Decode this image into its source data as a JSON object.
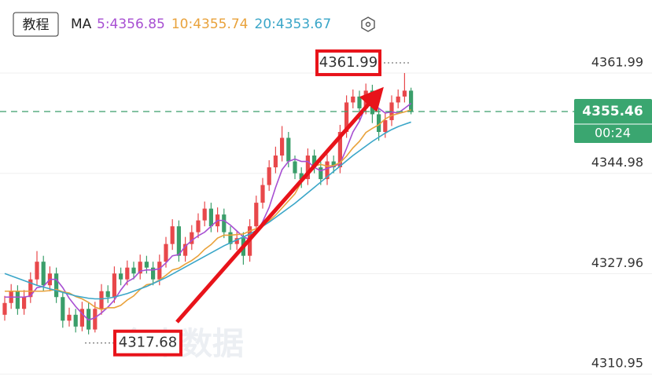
{
  "header": {
    "button": "教程",
    "indicator": "MA",
    "watermark": "金十数据"
  },
  "chart_data": {
    "type": "candlestick",
    "up_color": "#e8484b",
    "down_color": "#3a9e6a",
    "open": [
      4321,
      4323,
      4325,
      4322,
      4324,
      4327,
      4330,
      4326,
      4328,
      4324,
      4320,
      4321,
      4319,
      4322,
      4318.5,
      4322,
      4325,
      4324,
      4328,
      4327,
      4329,
      4328,
      4330,
      4329,
      4327,
      4330,
      4333,
      4336,
      4331,
      4333,
      4335,
      4337,
      4339,
      4336,
      4338,
      4335,
      4333,
      4334,
      4331,
      4336,
      4340,
      4343,
      4346,
      4348,
      4351,
      4347,
      4345,
      4344,
      4348,
      4346,
      4344,
      4347,
      4346,
      4352,
      4357,
      4358,
      4356,
      4359,
      4355,
      4352,
      4354,
      4357,
      4358,
      4359
    ],
    "high": [
      4324.2,
      4326.2,
      4326,
      4325.2,
      4328.2,
      4331.8,
      4331,
      4329.2,
      4329,
      4325,
      4322.2,
      4322,
      4323.2,
      4323,
      4323.2,
      4326.2,
      4326,
      4329.2,
      4329,
      4330.2,
      4330,
      4331.2,
      4331,
      4330,
      4331.2,
      4334.2,
      4337.2,
      4337,
      4334.2,
      4336.2,
      4338.2,
      4340.2,
      4340,
      4339.2,
      4339,
      4336,
      4335.2,
      4335,
      4337.2,
      4341.2,
      4344.2,
      4347.2,
      4349.5,
      4353,
      4352,
      4348,
      4346,
      4349.2,
      4349,
      4347,
      4348.2,
      4348,
      4353.2,
      4358.2,
      4359.2,
      4359,
      4360.2,
      4360,
      4356,
      4355.2,
      4358.2,
      4359.2,
      4361.99,
      4359.5
    ],
    "low": [
      4320,
      4322,
      4321,
      4321,
      4323,
      4326,
      4325,
      4325,
      4323,
      4318.8,
      4319,
      4318,
      4318.2,
      4317.68,
      4318,
      4321,
      4323,
      4323,
      4326,
      4326,
      4327,
      4327,
      4328,
      4326,
      4326,
      4329,
      4332,
      4330,
      4330,
      4332,
      4334,
      4336,
      4335,
      4335,
      4334,
      4332,
      4332,
      4329.5,
      4330,
      4335,
      4339,
      4342,
      4345,
      4347,
      4346,
      4344,
      4342.5,
      4343,
      4345,
      4343,
      4343,
      4345,
      4345,
      4351,
      4356,
      4354,
      4355,
      4353.5,
      4350.5,
      4351,
      4353,
      4356,
      4357,
      4355
    ],
    "close": [
      4323,
      4325,
      4322,
      4324,
      4327,
      4330,
      4326,
      4328,
      4324,
      4320,
      4321,
      4319,
      4322,
      4318.5,
      4322,
      4325,
      4324,
      4328,
      4327,
      4329,
      4328,
      4330,
      4329,
      4327,
      4330,
      4333,
      4336,
      4331,
      4333,
      4335,
      4337,
      4339,
      4336,
      4338,
      4335,
      4333,
      4334,
      4331,
      4336,
      4340,
      4343,
      4346,
      4348,
      4351,
      4347,
      4345,
      4344,
      4348,
      4346,
      4344,
      4347,
      4346,
      4352,
      4357,
      4358,
      4356,
      4359,
      4355,
      4352,
      4354,
      4357,
      4358,
      4359,
      4355.46
    ],
    "series": [
      {
        "name": "5:4356.85",
        "color": "#a74fd2",
        "values": [
          4324,
          4324,
          4324,
          4324,
          4324.2,
          4325.6,
          4325.8,
          4327,
          4327,
          4325.6,
          4323.8,
          4322.4,
          4321.2,
          4320.1,
          4320.5,
          4321.3,
          4322.3,
          4323.5,
          4325.2,
          4326.6,
          4327.2,
          4328.4,
          4328.6,
          4328.6,
          4328.8,
          4329.8,
          4331,
          4331.2,
          4332.6,
          4333.6,
          4334.4,
          4335,
          4336,
          4337,
          4337,
          4336.2,
          4335.2,
          4334.2,
          4333.8,
          4334.8,
          4336.8,
          4339.2,
          4342.6,
          4345.6,
          4347,
          4347.4,
          4347,
          4347,
          4346,
          4345.4,
          4345.8,
          4346.2,
          4346.6,
          4349.2,
          4352,
          4353.8,
          4356.4,
          4357,
          4356,
          4355.2,
          4355.4,
          4355.2,
          4356,
          4356.85
        ]
      },
      {
        "name": "10:4355.74",
        "color": "#e9a23b",
        "values": [
          4325,
          4325,
          4325,
          4325,
          4325,
          4325,
          4325,
          4325.1,
          4325.3,
          4324.9,
          4324.7,
          4324.1,
          4323.7,
          4323.1,
          4322.3,
          4321.9,
          4322.2,
          4322.2,
          4322.6,
          4323.5,
          4324.2,
          4325.3,
          4326.1,
          4326.3,
          4326.9,
          4327.7,
          4328.6,
          4328.9,
          4329.6,
          4330.2,
          4331,
          4332.1,
          4332.9,
          4334,
          4334.5,
          4334.5,
          4334.6,
          4334.7,
          4335.2,
          4335.6,
          4336.2,
          4336.9,
          4337.9,
          4339.1,
          4340.3,
          4341.5,
          4343.5,
          4345.2,
          4346.2,
          4346.5,
          4346.2,
          4346.3,
          4346.8,
          4347.9,
          4349.3,
          4350.4,
          4351.9,
          4352.6,
          4353.2,
          4354.2,
          4354.8,
          4355.1,
          4355.4,
          4355.74
        ]
      },
      {
        "name": "20:4353.67",
        "color": "#3aa6c8",
        "values": [
          4328,
          4327.6,
          4327.2,
          4326.8,
          4326.4,
          4326,
          4325.7,
          4325.4,
          4325.1,
          4324.8,
          4324.5,
          4324.2,
          4324,
          4323.8,
          4323.7,
          4323.7,
          4323.8,
          4324,
          4324.3,
          4324.6,
          4325,
          4325.4,
          4325.8,
          4326.3,
          4326.8,
          4327.3,
          4327.9,
          4328.5,
          4329.1,
          4329.7,
          4330.3,
          4330.9,
          4331.5,
          4332.1,
          4332.7,
          4333.2,
          4333.7,
          4334.2,
          4334.7,
          4335.3,
          4336,
          4336.7,
          4337.5,
          4338.3,
          4339.1,
          4339.9,
          4340.8,
          4341.7,
          4342.6,
          4343.5,
          4344.4,
          4345.3,
          4346.2,
          4347.1,
          4348,
          4348.8,
          4349.6,
          4350.4,
          4351.1,
          4351.8,
          4352.4,
          4352.9,
          4353.3,
          4353.67
        ]
      }
    ],
    "countdown": "00:24",
    "ylim": [
      4310.45,
      4374.37
    ],
    "yticks": [
      4310.95,
      4327.96,
      4344.98,
      4361.99
    ],
    "grid": true
  }
}
